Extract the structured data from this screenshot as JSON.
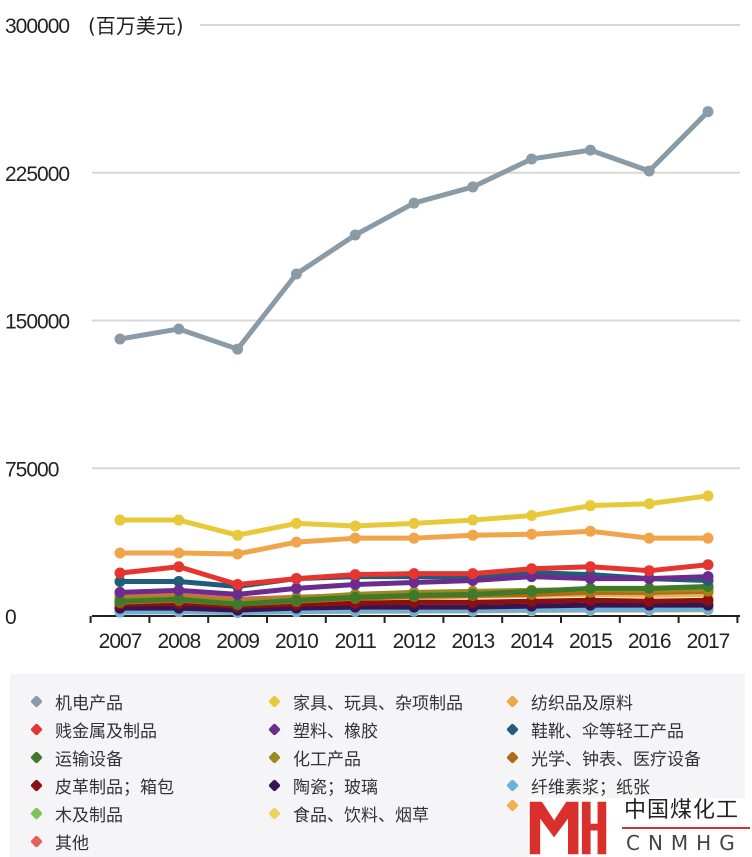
{
  "chart_data": {
    "type": "line",
    "title": "",
    "ylabel": "(百万美元)",
    "xlabel": "",
    "ylim": [
      0,
      300000
    ],
    "yticks": [
      "0",
      "75000",
      "150000",
      "225000",
      "300000"
    ],
    "y_unit_label": "(百万美元)",
    "x": [
      "2007",
      "2008",
      "2009",
      "2010",
      "2011",
      "2012",
      "2013",
      "2014",
      "2015",
      "2016",
      "2017"
    ],
    "grid": true,
    "legend_position": "bottom",
    "series": [
      {
        "name": "机电产品",
        "color": "#8a9aa6",
        "values": [
          140600,
          145700,
          135500,
          173600,
          193400,
          209600,
          217800,
          232000,
          236500,
          225900,
          256000
        ]
      },
      {
        "name": "家具、玩具、杂项制品",
        "color": "#e8c93a",
        "values": [
          48700,
          48700,
          41000,
          47000,
          45700,
          47000,
          48700,
          51000,
          56000,
          57000,
          61000
        ]
      },
      {
        "name": "纺织品及原料",
        "color": "#f0a54a",
        "values": [
          32000,
          32000,
          31500,
          37500,
          39500,
          39500,
          41000,
          41500,
          43000,
          39500,
          39500
        ]
      },
      {
        "name": "贱金属及制品",
        "color": "#e6352f",
        "values": [
          21800,
          25000,
          16000,
          19000,
          21000,
          21500,
          21500,
          24000,
          25000,
          23000,
          26000
        ]
      },
      {
        "name": "塑料、橡胶",
        "color": "#6a2c8e",
        "values": [
          12000,
          13000,
          11000,
          14000,
          16000,
          17000,
          18000,
          20000,
          19000,
          19000,
          20000
        ]
      },
      {
        "name": "鞋靴、伞等轻工产品",
        "color": "#1f5d78",
        "values": [
          17500,
          17500,
          15000,
          19000,
          20000,
          20000,
          20000,
          22000,
          21000,
          19000,
          18000
        ]
      },
      {
        "name": "运输设备",
        "color": "#3f7a2a",
        "values": [
          7500,
          8500,
          6000,
          8000,
          9500,
          10500,
          11000,
          12500,
          14000,
          14000,
          15000
        ]
      },
      {
        "name": "化工产品",
        "color": "#9c8a1e",
        "values": [
          9000,
          9500,
          7500,
          9000,
          11000,
          12000,
          12500,
          13000,
          13500,
          13000,
          13500
        ]
      },
      {
        "name": "光学、钟表、医疗设备",
        "color": "#b06a14",
        "values": [
          7000,
          8000,
          6000,
          7500,
          9000,
          10000,
          10500,
          11000,
          12000,
          12000,
          12500
        ]
      },
      {
        "name": "皮革制品；箱包",
        "color": "#8b1010",
        "values": [
          6000,
          6500,
          5000,
          6000,
          6500,
          7000,
          7000,
          7500,
          8000,
          7500,
          8000
        ]
      },
      {
        "name": "陶瓷；玻璃",
        "color": "#3a1450",
        "values": [
          4000,
          4000,
          3000,
          4000,
          4500,
          4500,
          4500,
          5000,
          5500,
          5500,
          5500
        ]
      },
      {
        "name": "纤维素浆；纸张",
        "color": "#6fb0d6",
        "values": [
          2000,
          2200,
          1800,
          2200,
          2500,
          2600,
          2700,
          3000,
          3200,
          3200,
          3400
        ]
      },
      {
        "name": "木及制品",
        "color": "#7cc35a",
        "values": [
          3000,
          3100,
          2500,
          3000,
          3200,
          3300,
          3400,
          3600,
          3800,
          3700,
          3800
        ]
      },
      {
        "name": "食品、饮料、烟草",
        "color": "#eed55a",
        "values": [
          2000,
          2100,
          1800,
          2100,
          2300,
          2400,
          2500,
          2700,
          2900,
          2900,
          3000
        ]
      },
      {
        "name": "",
        "color": "#f0b050",
        "values": [
          8000,
          8500,
          7000,
          8000,
          9000,
          9500,
          10000,
          10500,
          11000,
          10500,
          11000
        ]
      },
      {
        "name": "其他",
        "color": "#e6605a",
        "values": [
          10000,
          10500,
          8500,
          9500,
          10500,
          11000,
          11000,
          11500,
          12000,
          11500,
          12000
        ]
      }
    ]
  },
  "logo": {
    "cn": "中国煤化工",
    "en": "CNMHG"
  }
}
